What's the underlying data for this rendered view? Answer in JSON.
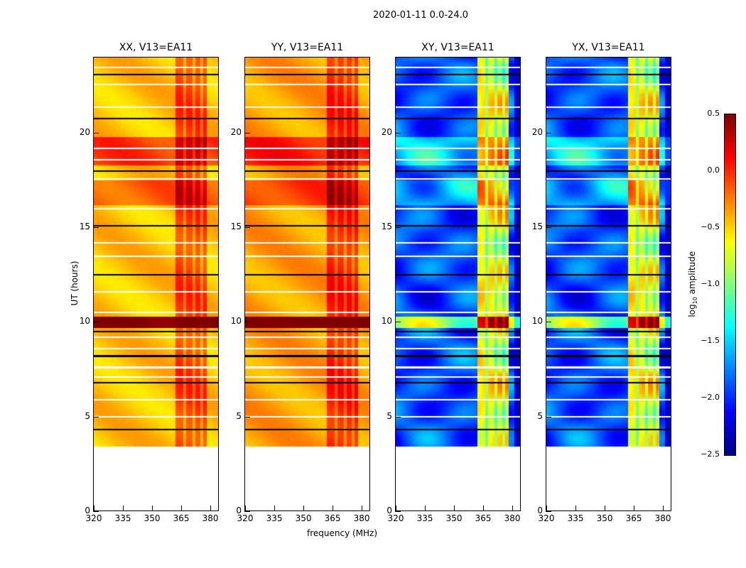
{
  "chart_data": {
    "type": "heatmap",
    "title": "2020-01-11 0.0-24.0",
    "xlabel": "frequency (MHz)",
    "ylabel": "UT (hours)",
    "xlim": [
      320,
      384
    ],
    "ylim": [
      0,
      24
    ],
    "xticks": [
      320,
      335,
      350,
      365,
      380
    ],
    "yticks": [
      0,
      5,
      10,
      15,
      20
    ],
    "data_time_range": [
      3.4,
      24
    ],
    "rfi_band_mhz": [
      362,
      378
    ],
    "rfi_stripes_mhz": [
      [
        362,
        366
      ],
      [
        367.5,
        370.5
      ],
      [
        372,
        374.5
      ],
      [
        376,
        378
      ]
    ],
    "hot_time_ranges": [
      {
        "range": [
          9.7,
          10.3
        ],
        "delta": 1.0
      },
      {
        "range": [
          16.2,
          17.5
        ],
        "delta": 0.3
      },
      {
        "range": [
          18.3,
          19.8
        ],
        "delta": 0.4
      }
    ],
    "flagged_hours": [
      4.3,
      5.0,
      5.9,
      6.8,
      7.1,
      7.6,
      8.2,
      8.6,
      9.2,
      9.5,
      10.5,
      11.6,
      12.5,
      13.5,
      14.2,
      15.1,
      16.0,
      17.6,
      18.0,
      18.6,
      19.2,
      20.8,
      21.4,
      22.6,
      23.1,
      23.5
    ],
    "panels": [
      {
        "title": "XX, V13=EA11",
        "base": -0.45
      },
      {
        "title": "YY, V13=EA11",
        "base": -0.35
      },
      {
        "title": "XY, V13=EA11",
        "base": -1.9
      },
      {
        "title": "YX, V13=EA11",
        "base": -1.9
      }
    ],
    "colorbar": {
      "label": "log10 amplitude",
      "range": [
        -2.5,
        0.5
      ],
      "ticks": [
        "0.5",
        "0.0",
        "−0.5",
        "−1.0",
        "−1.5",
        "−2.0",
        "−2.5"
      ],
      "colormap": "jet"
    }
  },
  "labels": {
    "title": "2020-01-11 0.0-24.0",
    "xlabel": "frequency (MHz)",
    "ylabel": "UT (hours)",
    "cb_log": "log",
    "cb_sub": "10",
    "cb_rest": " amplitude"
  }
}
